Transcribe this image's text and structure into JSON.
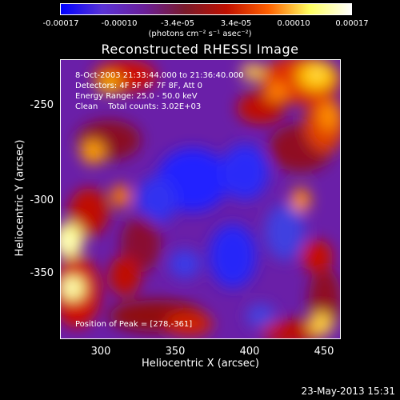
{
  "colorbar": {
    "ticks": [
      "-0.00017",
      "-0.00010",
      "-3.4e-05",
      "3.4e-05",
      "0.00010",
      "0.00017"
    ],
    "units": "(photons cm⁻² s⁻¹ asec⁻²)",
    "colors": [
      "#0000ff",
      "#5a33d6",
      "#6a1f9a",
      "#7a1a2a",
      "#c01000",
      "#ff6000",
      "#ffff60",
      "#ffffff"
    ]
  },
  "title": "Reconstructed RHESSI Image",
  "info": {
    "time_range": "8-Oct-2003 21:33:44.000 to 21:36:40.000",
    "detectors": "Detectors: 4F 5F 6F 7F 8F, Att 0",
    "energy": "Energy Range: 25.0 - 50.0 keV",
    "clean": "Clean    Total counts: 3.02E+03"
  },
  "peak": "Position of Peak = [278,-361]",
  "axes": {
    "xlabel": "Heliocentric X (arcsec)",
    "ylabel": "Heliocentric Y (arcsec)",
    "xticks": [
      "300",
      "350",
      "400",
      "450"
    ],
    "yticks": [
      "-250",
      "-300",
      "-350"
    ]
  },
  "footer_date": "23-May-2013 15:31"
}
